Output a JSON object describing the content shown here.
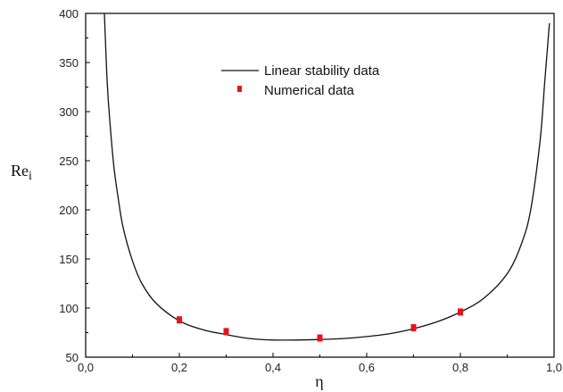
{
  "chart_data": {
    "type": "line",
    "xlabel": "η",
    "ylabel_main": "Re",
    "ylabel_sub": "i",
    "xlim": [
      0.0,
      1.0
    ],
    "ylim": [
      50,
      400
    ],
    "x_ticks": [
      "0,0",
      "0,2",
      "0,4",
      "0,6",
      "0,8",
      "1,0"
    ],
    "x_tick_values": [
      0.0,
      0.2,
      0.4,
      0.6,
      0.8,
      1.0
    ],
    "y_ticks": [
      "50",
      "100",
      "150",
      "200",
      "250",
      "300",
      "350",
      "400"
    ],
    "y_tick_values": [
      50,
      100,
      150,
      200,
      250,
      300,
      350,
      400
    ],
    "legend_position": "top-center",
    "series": [
      {
        "name": "Linear stability data",
        "kind": "line",
        "color": "#111111",
        "x": [
          0.04,
          0.045,
          0.05,
          0.06,
          0.07,
          0.08,
          0.1,
          0.12,
          0.15,
          0.2,
          0.25,
          0.3,
          0.35,
          0.4,
          0.45,
          0.5,
          0.55,
          0.6,
          0.65,
          0.7,
          0.75,
          0.8,
          0.85,
          0.9,
          0.93,
          0.95,
          0.97,
          0.98,
          0.99
        ],
        "y": [
          400,
          340,
          300,
          245,
          210,
          182,
          148,
          125,
          105,
          87,
          78,
          73,
          69,
          67.5,
          67.5,
          68,
          69,
          71,
          74,
          79,
          86,
          96,
          110,
          135,
          165,
          200,
          270,
          330,
          390
        ]
      },
      {
        "name": "Numerical data",
        "kind": "scatter",
        "color": "#e8141c",
        "x": [
          0.2,
          0.3,
          0.5,
          0.7,
          0.8
        ],
        "y": [
          88,
          76,
          69.5,
          80,
          96
        ]
      }
    ]
  }
}
